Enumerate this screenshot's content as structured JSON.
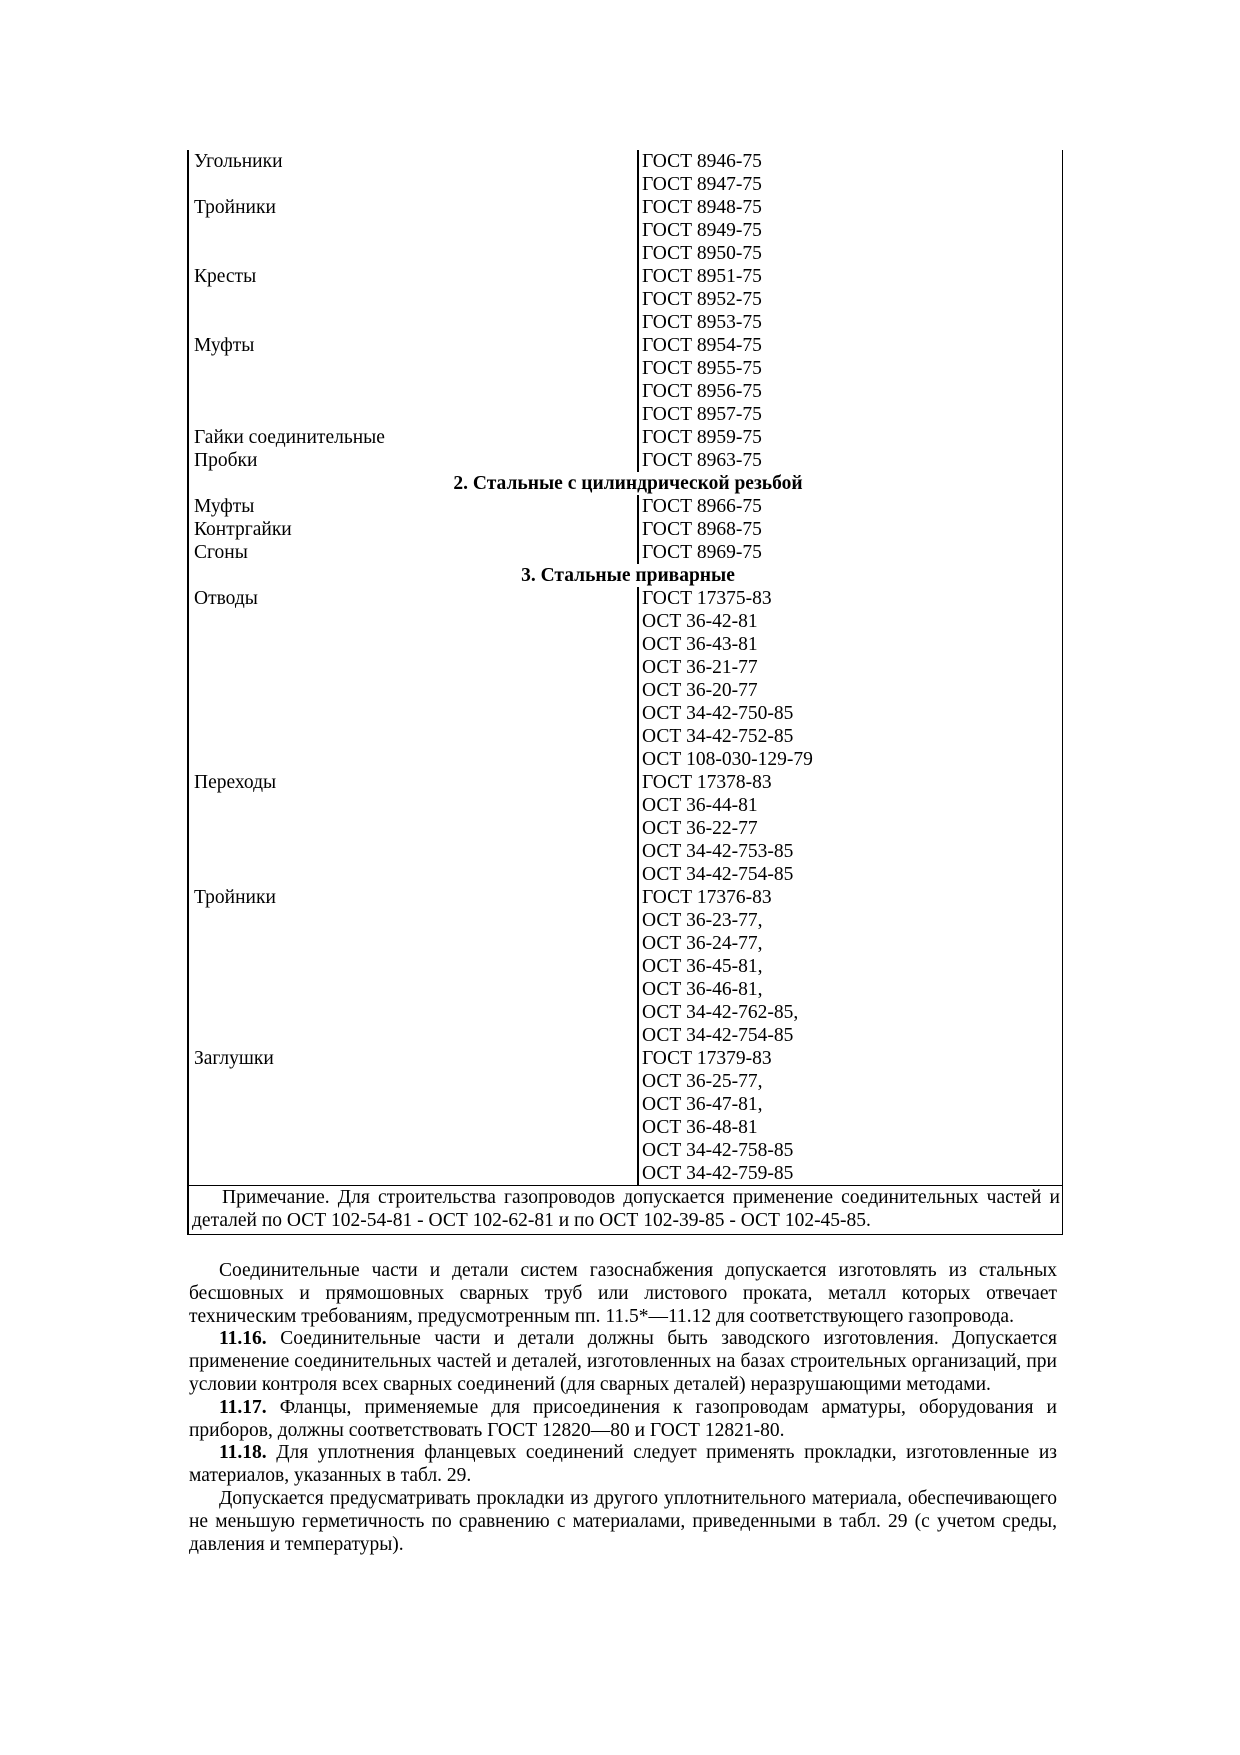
{
  "table": {
    "rows": [
      {
        "type": "row",
        "name": "Угольники",
        "std": "ГОСТ 8946-75"
      },
      {
        "type": "row",
        "name": "",
        "std": "ГОСТ 8947-75"
      },
      {
        "type": "row",
        "name": "Тройники",
        "std": "ГОСТ 8948-75"
      },
      {
        "type": "row",
        "name": "",
        "std": "ГОСТ 8949-75"
      },
      {
        "type": "row",
        "name": "",
        "std": "ГОСТ 8950-75"
      },
      {
        "type": "row",
        "name": "Кресты",
        "std": "ГОСТ 8951-75"
      },
      {
        "type": "row",
        "name": "",
        "std": "ГОСТ 8952-75"
      },
      {
        "type": "row",
        "name": "",
        "std": "ГОСТ 8953-75"
      },
      {
        "type": "row",
        "name": "Муфты",
        "std": "ГОСТ 8954-75"
      },
      {
        "type": "row",
        "name": "",
        "std": "ГОСТ 8955-75"
      },
      {
        "type": "row",
        "name": "",
        "std": "ГОСТ 8956-75"
      },
      {
        "type": "row",
        "name": "",
        "std": "ГОСТ 8957-75"
      },
      {
        "type": "row",
        "name": "Гайки соединительные",
        "std": "ГОСТ 8959-75"
      },
      {
        "type": "row",
        "name": "Пробки",
        "std": "ГОСТ 8963-75"
      },
      {
        "type": "section",
        "title": "2. Стальные с цилиндрической резьбой"
      },
      {
        "type": "row",
        "name": "Муфты",
        "std": "ГОСТ 8966-75"
      },
      {
        "type": "row",
        "name": "Контргайки",
        "std": "ГОСТ 8968-75"
      },
      {
        "type": "row",
        "name": "Сгоны",
        "std": "ГОСТ 8969-75"
      },
      {
        "type": "section",
        "title": "3. Стальные приварные"
      },
      {
        "type": "row",
        "name": "Отводы",
        "std": "ГОСТ 17375-83"
      },
      {
        "type": "row",
        "name": "",
        "std": "ОСТ 36-42-81"
      },
      {
        "type": "row",
        "name": "",
        "std": "ОСТ 36-43-81"
      },
      {
        "type": "row",
        "name": "",
        "std": "ОСТ 36-21-77"
      },
      {
        "type": "row",
        "name": "",
        "std": "ОСТ 36-20-77"
      },
      {
        "type": "row",
        "name": "",
        "std": "ОСТ 34-42-750-85"
      },
      {
        "type": "row",
        "name": "",
        "std": "ОСТ 34-42-752-85"
      },
      {
        "type": "row",
        "name": "",
        "std": "ОСТ 108-030-129-79"
      },
      {
        "type": "row",
        "name": "Переходы",
        "std": "ГОСТ 17378-83"
      },
      {
        "type": "row",
        "name": "",
        "std": "ОСТ 36-44-81"
      },
      {
        "type": "row",
        "name": "",
        "std": "ОСТ 36-22-77"
      },
      {
        "type": "row",
        "name": "",
        "std": "ОСТ 34-42-753-85"
      },
      {
        "type": "row",
        "name": "",
        "std": "ОСТ 34-42-754-85"
      },
      {
        "type": "row",
        "name": "Тройники",
        "std": "ГОСТ 17376-83"
      },
      {
        "type": "row",
        "name": "",
        "std": "ОСТ 36-23-77,"
      },
      {
        "type": "row",
        "name": "",
        "std": "ОСТ 36-24-77,"
      },
      {
        "type": "row",
        "name": "",
        "std": "ОСТ 36-45-81,"
      },
      {
        "type": "row",
        "name": "",
        "std": "ОСТ 36-46-81,"
      },
      {
        "type": "row",
        "name": "",
        "std": "ОСТ 34-42-762-85,"
      },
      {
        "type": "row",
        "name": "",
        "std": "ОСТ 34-42-754-85"
      },
      {
        "type": "row",
        "name": "Заглушки",
        "std": "ГОСТ 17379-83"
      },
      {
        "type": "row",
        "name": "",
        "std": "ОСТ 36-25-77,"
      },
      {
        "type": "row",
        "name": "",
        "std": "ОСТ 36-47-81,"
      },
      {
        "type": "row",
        "name": "",
        "std": "ОСТ 36-48-81"
      },
      {
        "type": "row",
        "name": "",
        "std": "ОСТ 34-42-758-85"
      },
      {
        "type": "row",
        "name": "",
        "std": "ОСТ 34-42-759-85"
      }
    ],
    "note": "Примечание. Для строительства газопроводов допускается применение соединительных частей и деталей по ОСТ 102-54-81 - ОСТ 102-62-81 и по ОСТ 102-39-85 - ОСТ 102-45-85."
  },
  "paragraphs": [
    {
      "num": "",
      "text": "Соединительные части и детали систем газоснабжения допускается изготовлять из стальных бесшовных и прямошовных сварных труб или листового проката, металл которых отвечает техническим требованиям, предусмотренным пп. 11.5*—11.12 для соответствующего газопровода."
    },
    {
      "num": "11.16.",
      "text": " Соединительные части и детали должны быть заводского изготовления. Допускается применение соединительных частей и деталей, изготовленных на базах строительных организаций, при условии контроля всех сварных соединений (для сварных деталей) неразрушающими методами."
    },
    {
      "num": "11.17.",
      "text": " Фланцы, применяемые для присоединения к газопроводам арматуры, оборудования и приборов, должны соответствовать ГОСТ 12820—80 и ГОСТ 12821-80."
    },
    {
      "num": "11.18.",
      "text": " Для уплотнения фланцевых соединений следует применять прокладки, изготовленные из материалов, указанных в табл. 29."
    },
    {
      "num": "",
      "text": "Допускается предусматривать прокладки из другого уплотнительного материала, обеспечивающего не меньшую герметичность по сравнению с материалами, приведенными в табл. 29 (с учетом среды, давления и температуры)."
    }
  ]
}
